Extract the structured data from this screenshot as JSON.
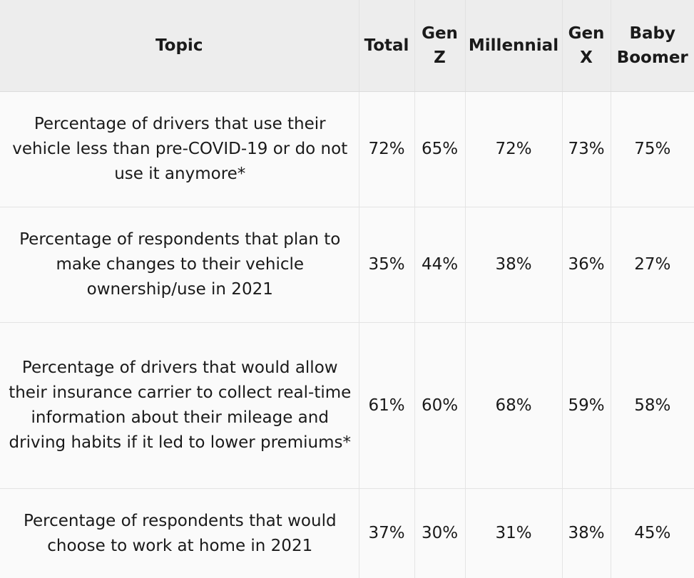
{
  "table": {
    "headers": {
      "topic": "Topic",
      "total": "Total",
      "genz": "Gen Z",
      "millennial": "Millennial",
      "genx": "Gen X",
      "boomer": "Baby Boomer"
    },
    "rows": [
      {
        "topic": "Percentage of drivers that use their vehicle less than pre-COVID-19 or do not use it anymore*",
        "total": "72%",
        "genz": "65%",
        "millennial": "72%",
        "genx": "73%",
        "boomer": "75%"
      },
      {
        "topic": "Percentage of respondents that plan to make changes to their vehicle ownership/use in 2021",
        "total": "35%",
        "genz": "44%",
        "millennial": "38%",
        "genx": "36%",
        "boomer": "27%"
      },
      {
        "topic": "Percentage of drivers that would allow their insurance carrier to collect real-time information about their mileage and driving habits if it led to lower premiums*",
        "total": "61%",
        "genz": "60%",
        "millennial": "68%",
        "genx": "59%",
        "boomer": "58%"
      },
      {
        "topic": "Percentage of respondents that would choose to work at home in 2021",
        "total": "37%",
        "genz": "30%",
        "millennial": "31%",
        "genx": "38%",
        "boomer": "45%"
      }
    ]
  }
}
